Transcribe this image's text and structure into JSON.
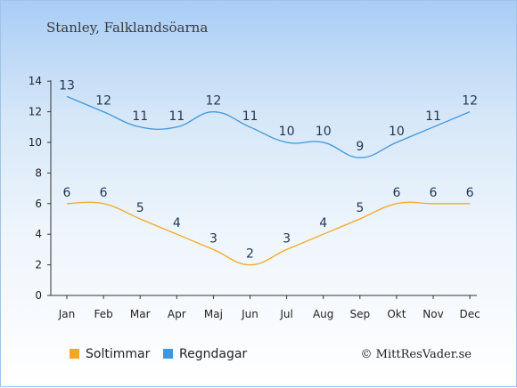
{
  "chart_title": "Stanley, Falklandsöarna",
  "credit": "© MittResVader.se",
  "chart_data": {
    "type": "line",
    "categories": [
      "Jan",
      "Feb",
      "Mar",
      "Apr",
      "Maj",
      "Jun",
      "Jul",
      "Aug",
      "Sep",
      "Okt",
      "Nov",
      "Dec"
    ],
    "ylim": [
      0,
      14
    ],
    "yticks": [
      0,
      2,
      4,
      6,
      8,
      10,
      12,
      14
    ],
    "grid": false,
    "legend_position": "bottom-left",
    "series": [
      {
        "name": "Soltimmar",
        "color": "#f5a623",
        "values": [
          6,
          6,
          5,
          4,
          3,
          2,
          3,
          4,
          5,
          6,
          6,
          6
        ]
      },
      {
        "name": "Regndagar",
        "color": "#3d97e0",
        "values": [
          13,
          12,
          11,
          11,
          12,
          11,
          10,
          10,
          9,
          10,
          11,
          12
        ]
      }
    ]
  }
}
